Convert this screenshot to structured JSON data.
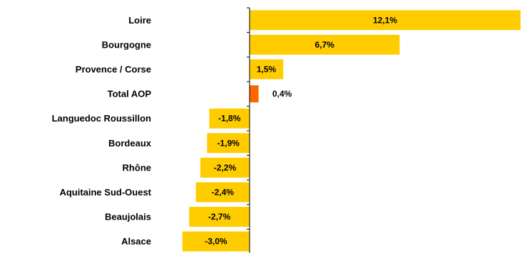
{
  "chart_data": {
    "type": "bar",
    "orientation": "horizontal",
    "categories": [
      "Loire",
      "Bourgogne",
      "Provence / Corse",
      "Total AOP",
      "Languedoc Roussillon",
      "Bordeaux",
      "Rhône",
      "Aquitaine Sud-Ouest",
      "Beaujolais",
      "Alsace"
    ],
    "values": [
      12.1,
      6.7,
      1.5,
      0.4,
      -1.8,
      -1.9,
      -2.2,
      -2.4,
      -2.7,
      -3.0
    ],
    "value_labels": [
      "12,1%",
      "6,7%",
      "1,5%",
      "0,4%",
      "-1,8%",
      "-1,9%",
      "-2,2%",
      "-2,4%",
      "-2,7%",
      "-3,0%"
    ],
    "highlight_category": "Total AOP",
    "colors": {
      "bar": "#FFCC00",
      "highlight": "#FF6600",
      "axis": "#000000"
    },
    "title": "",
    "xlabel": "",
    "ylabel": "",
    "xlim": [
      -3.0,
      12.1
    ],
    "grid": false,
    "legend": "none"
  }
}
